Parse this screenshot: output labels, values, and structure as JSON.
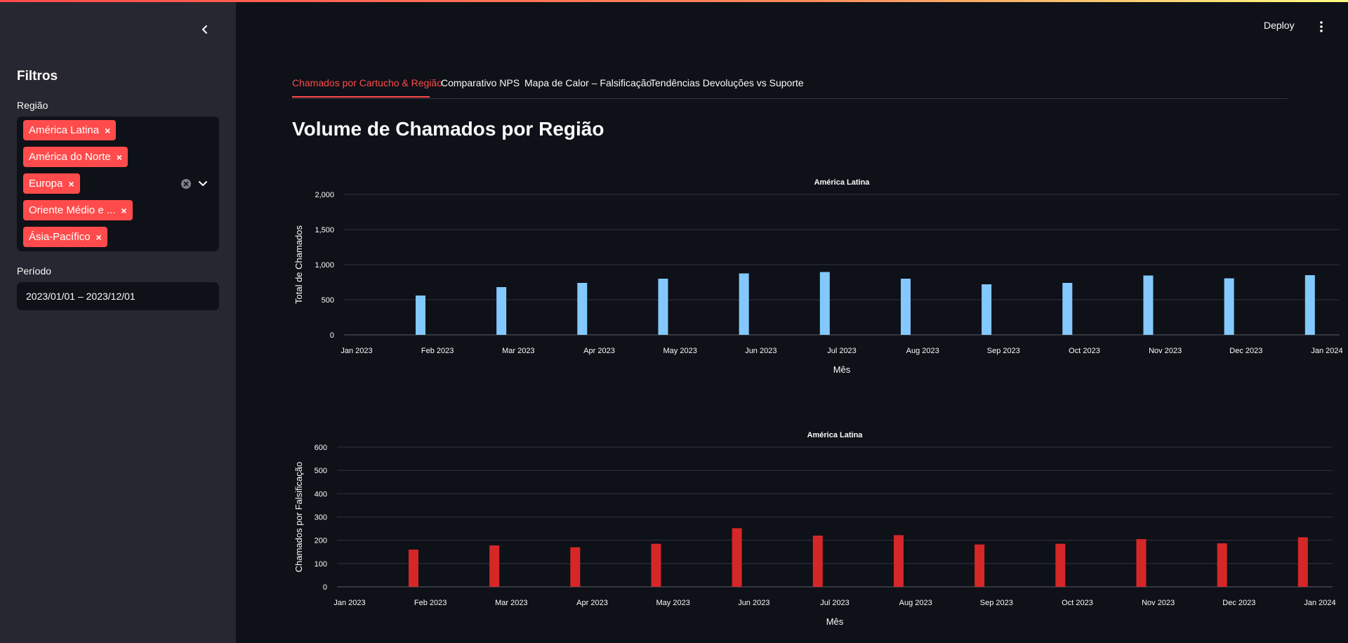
{
  "sidebar": {
    "title": "Filtros",
    "region_label": "Região",
    "regions": [
      "América Latina",
      "América do Norte",
      "Europa",
      "Oriente Médio e ...",
      "Ásia-Pacífico"
    ],
    "chip_remove": "×",
    "period_label": "Período",
    "period_value": "2023/01/01 – 2023/12/01"
  },
  "header": {
    "deploy_label": "Deploy"
  },
  "tabs": [
    {
      "label": "Chamados por Cartucho & Região",
      "active": true
    },
    {
      "label": "Comparativo NPS",
      "active": false
    },
    {
      "label": "Mapa de Calor – Falsificação",
      "active": false
    },
    {
      "label": "Tendências Devoluções vs Suporte",
      "active": false
    }
  ],
  "main": {
    "title": "Volume de Chamados por Região"
  },
  "colors": {
    "accent": "#ff4b4b",
    "bar1": "#83c9ff",
    "bar2": "#d62728",
    "background": "#0e1117",
    "sidebar": "#262730"
  },
  "chart_data": [
    {
      "type": "bar",
      "title": "América Latina",
      "xlabel": "Mês",
      "ylabel": "Total de Chamados",
      "x_ticks": [
        "Jan 2023",
        "Feb 2023",
        "Mar 2023",
        "Apr 2023",
        "May 2023",
        "Jun 2023",
        "Jul 2023",
        "Aug 2023",
        "Sep 2023",
        "Oct 2023",
        "Nov 2023",
        "Dec 2023",
        "Jan 2024"
      ],
      "y_ticks": [
        "0",
        "500",
        "1,000",
        "1,500",
        "2,000"
      ],
      "ylim": [
        0,
        2000
      ],
      "values": [
        560,
        680,
        740,
        800,
        875,
        895,
        800,
        720,
        740,
        845,
        805,
        850
      ],
      "color": "#83c9ff"
    },
    {
      "type": "bar",
      "title": "América Latina",
      "xlabel": "Mês",
      "ylabel": "Chamados por Falsificação",
      "x_ticks": [
        "Jan 2023",
        "Feb 2023",
        "Mar 2023",
        "Apr 2023",
        "May 2023",
        "Jun 2023",
        "Jul 2023",
        "Aug 2023",
        "Sep 2023",
        "Oct 2023",
        "Nov 2023",
        "Dec 2023",
        "Jan 2024"
      ],
      "y_ticks": [
        "0",
        "100",
        "200",
        "300",
        "400",
        "500",
        "600"
      ],
      "ylim": [
        0,
        600
      ],
      "values": [
        160,
        178,
        170,
        185,
        252,
        220,
        222,
        182,
        185,
        205,
        187,
        213
      ],
      "color": "#d62728"
    }
  ]
}
